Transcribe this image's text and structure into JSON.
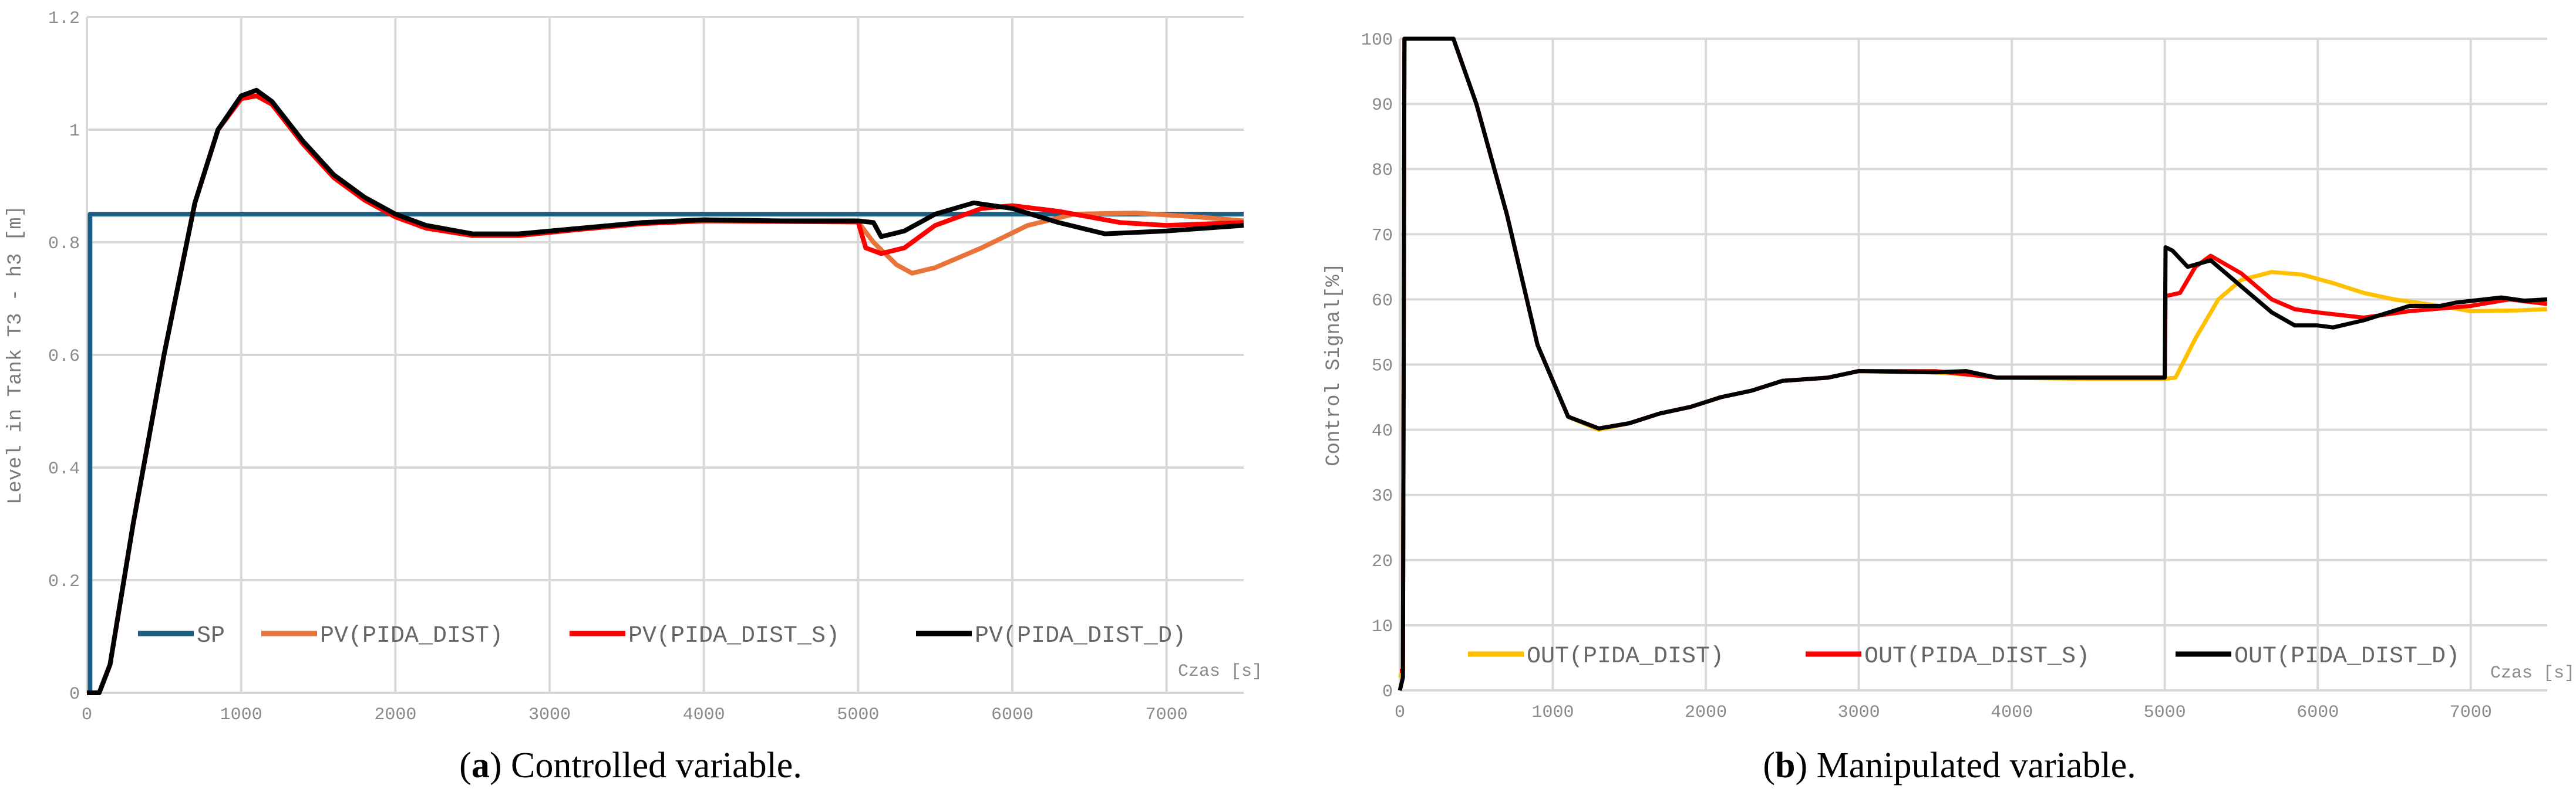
{
  "chart_data": [
    {
      "type": "line",
      "caption_prefix": "a",
      "caption": "Controlled variable.",
      "xlabel": "Czas [s]",
      "ylabel": "Level in Tank T3 - h3 [m]",
      "xlim": [
        0,
        7500
      ],
      "ylim": [
        0,
        1.2
      ],
      "xticks": [
        0,
        1000,
        2000,
        3000,
        4000,
        5000,
        6000,
        7000
      ],
      "yticks": [
        0,
        0.2,
        0.4,
        0.6,
        0.8,
        1,
        1.2
      ],
      "grid": true,
      "legend_position": "bottom",
      "series": [
        {
          "name": "SP",
          "color": "#1f5f84",
          "x": [
            0,
            20,
            20,
            7500
          ],
          "y": [
            0,
            0,
            0.85,
            0.85
          ]
        },
        {
          "name": "PV(PIDA_DIST)",
          "color": "#e8743b",
          "x": [
            0,
            80,
            150,
            300,
            500,
            700,
            850,
            1000,
            1100,
            1200,
            1400,
            1600,
            1800,
            2000,
            2200,
            2500,
            2800,
            3200,
            3600,
            4000,
            4500,
            5000,
            5100,
            5250,
            5350,
            5500,
            5800,
            6100,
            6400,
            6800,
            7200,
            7500
          ],
          "y": [
            0,
            0,
            0.05,
            0.3,
            0.6,
            0.87,
            1.0,
            1.055,
            1.06,
            1.045,
            0.975,
            0.915,
            0.875,
            0.845,
            0.825,
            0.812,
            0.812,
            0.823,
            0.833,
            0.838,
            0.837,
            0.836,
            0.8,
            0.76,
            0.745,
            0.755,
            0.79,
            0.83,
            0.85,
            0.852,
            0.845,
            0.838
          ]
        },
        {
          "name": "PV(PIDA_DIST_S)",
          "color": "#ff0000",
          "x": [
            0,
            80,
            150,
            300,
            500,
            700,
            850,
            1000,
            1100,
            1200,
            1400,
            1600,
            1800,
            2000,
            2200,
            2500,
            2800,
            3200,
            3600,
            4000,
            4500,
            5000,
            5050,
            5150,
            5300,
            5500,
            5800,
            6000,
            6300,
            6700,
            7000,
            7500
          ],
          "y": [
            0,
            0,
            0.05,
            0.3,
            0.6,
            0.87,
            1.0,
            1.055,
            1.06,
            1.045,
            0.975,
            0.915,
            0.875,
            0.845,
            0.825,
            0.812,
            0.812,
            0.823,
            0.833,
            0.838,
            0.837,
            0.836,
            0.79,
            0.78,
            0.79,
            0.83,
            0.86,
            0.865,
            0.855,
            0.835,
            0.83,
            0.835
          ]
        },
        {
          "name": "PV(PIDA_DIST_D)",
          "color": "#000000",
          "x": [
            0,
            80,
            150,
            300,
            500,
            700,
            850,
            1000,
            1100,
            1200,
            1400,
            1600,
            1800,
            2000,
            2200,
            2500,
            2800,
            3200,
            3600,
            4000,
            4500,
            5000,
            5100,
            5150,
            5300,
            5500,
            5750,
            6000,
            6300,
            6600,
            7000,
            7500
          ],
          "y": [
            0,
            0,
            0.05,
            0.3,
            0.6,
            0.87,
            1.0,
            1.06,
            1.07,
            1.05,
            0.98,
            0.92,
            0.88,
            0.85,
            0.83,
            0.815,
            0.815,
            0.825,
            0.835,
            0.84,
            0.838,
            0.838,
            0.835,
            0.81,
            0.82,
            0.85,
            0.87,
            0.86,
            0.835,
            0.815,
            0.82,
            0.83
          ]
        }
      ]
    },
    {
      "type": "line",
      "caption_prefix": "b",
      "caption": "Manipulated variable.",
      "xlabel": "Czas [s]",
      "ylabel": "Control Signal[%]",
      "xlim": [
        0,
        7500
      ],
      "ylim": [
        0,
        100
      ],
      "xticks": [
        0,
        1000,
        2000,
        3000,
        4000,
        5000,
        6000,
        7000
      ],
      "yticks": [
        0,
        10,
        20,
        30,
        40,
        50,
        60,
        70,
        80,
        90,
        100
      ],
      "grid": true,
      "legend_position": "bottom",
      "series": [
        {
          "name": "OUT(PIDA_DIST)",
          "color": "#ffc000",
          "x": [
            0,
            20,
            30,
            350,
            500,
            700,
            900,
            1100,
            1300,
            1500,
            1700,
            1900,
            2100,
            2300,
            2500,
            2800,
            3000,
            3500,
            3700,
            3900,
            4500,
            5000,
            5070,
            5200,
            5350,
            5500,
            5700,
            5900,
            6100,
            6300,
            6500,
            6800,
            7000,
            7300,
            7500
          ],
          "y": [
            2,
            3,
            100,
            100,
            90,
            73,
            53,
            42,
            40,
            41,
            42.5,
            43.5,
            45,
            46,
            47.5,
            48,
            49,
            48.8,
            48.5,
            48,
            47.8,
            47.8,
            48,
            54,
            60,
            63,
            64.2,
            63.8,
            62.5,
            61,
            60,
            59,
            58.2,
            58.3,
            58.5
          ]
        },
        {
          "name": "OUT(PIDA_DIST_S)",
          "color": "#ff0000",
          "x": [
            0,
            20,
            30,
            350,
            500,
            700,
            900,
            1100,
            1300,
            1500,
            1700,
            1900,
            2100,
            2300,
            2500,
            2800,
            3000,
            3500,
            3700,
            3900,
            4500,
            5000,
            5005,
            5100,
            5200,
            5300,
            5500,
            5700,
            5850,
            6000,
            6300,
            6600,
            7000,
            7250,
            7500
          ],
          "y": [
            3,
            3,
            100,
            100,
            90,
            73,
            53,
            42,
            40.2,
            41,
            42.5,
            43.5,
            45,
            46,
            47.5,
            48,
            49,
            49,
            48.5,
            48,
            48,
            48,
            60.5,
            61,
            65,
            66.7,
            64,
            60,
            58.5,
            58,
            57.2,
            58.2,
            59,
            60,
            59.3
          ]
        },
        {
          "name": "OUT(PIDA_DIST_D)",
          "color": "#000000",
          "x": [
            0,
            20,
            30,
            350,
            500,
            700,
            900,
            1100,
            1300,
            1500,
            1700,
            1900,
            2100,
            2300,
            2500,
            2800,
            3000,
            3500,
            3700,
            3900,
            4500,
            5000,
            5005,
            5050,
            5150,
            5300,
            5500,
            5700,
            5850,
            6000,
            6100,
            6300,
            6600,
            6800,
            6900,
            7200,
            7350,
            7500
          ],
          "y": [
            0,
            2,
            100,
            100,
            90,
            73,
            53,
            42,
            40.2,
            41,
            42.5,
            43.5,
            45,
            46,
            47.5,
            48,
            49,
            48.8,
            49,
            48,
            48,
            48,
            68,
            67.5,
            65,
            66,
            62,
            58,
            56,
            56,
            55.7,
            56.8,
            59,
            59,
            59.5,
            60.3,
            59.8,
            60
          ]
        }
      ]
    }
  ]
}
